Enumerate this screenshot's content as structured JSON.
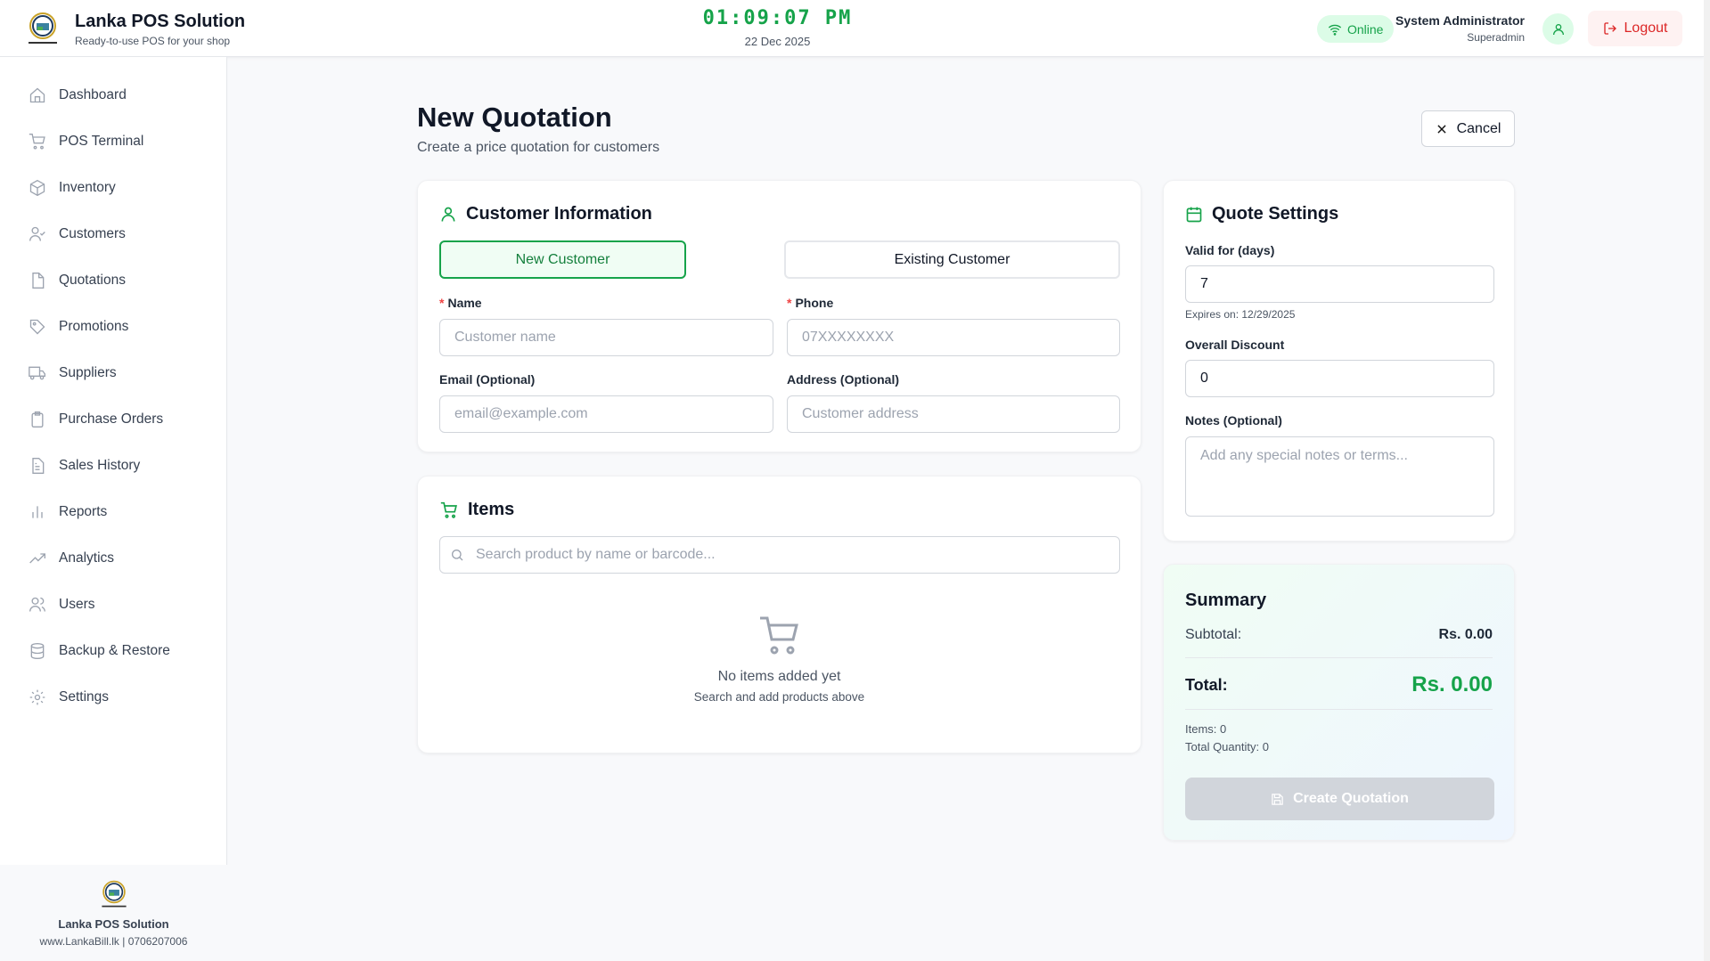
{
  "header": {
    "title": "Lanka POS Solution",
    "subtitle": "Ready-to-use POS for your shop",
    "time": "01:09:07 PM",
    "date": "22 Dec 2025",
    "status": "Online",
    "user_name": "System Administrator",
    "user_role": "Superadmin",
    "logout_label": "Logout"
  },
  "sidebar": {
    "items": [
      {
        "label": "Dashboard",
        "icon": "home-icon"
      },
      {
        "label": "POS Terminal",
        "icon": "cart-icon"
      },
      {
        "label": "Inventory",
        "icon": "box-icon"
      },
      {
        "label": "Customers",
        "icon": "user-check-icon"
      },
      {
        "label": "Quotations",
        "icon": "file-icon"
      },
      {
        "label": "Promotions",
        "icon": "tag-icon"
      },
      {
        "label": "Suppliers",
        "icon": "truck-icon"
      },
      {
        "label": "Purchase Orders",
        "icon": "clipboard-icon"
      },
      {
        "label": "Sales History",
        "icon": "file-text-icon"
      },
      {
        "label": "Reports",
        "icon": "bar-chart-icon"
      },
      {
        "label": "Analytics",
        "icon": "trending-up-icon"
      },
      {
        "label": "Users",
        "icon": "users-icon"
      },
      {
        "label": "Backup & Restore",
        "icon": "database-icon"
      },
      {
        "label": "Settings",
        "icon": "gear-icon"
      }
    ],
    "footer_name": "Lanka POS Solution",
    "footer_contact": "www.LankaBill.lk | 0706207006"
  },
  "page": {
    "title": "New Quotation",
    "subtitle": "Create a price quotation for customers",
    "cancel_label": "Cancel"
  },
  "customer": {
    "title": "Customer Information",
    "tab_new": "New Customer",
    "tab_existing": "Existing Customer",
    "active_tab": "New Customer",
    "name_label": "Name",
    "name_placeholder": "Customer name",
    "phone_label": "Phone",
    "phone_placeholder": "07XXXXXXXX",
    "email_label": "Email (Optional)",
    "email_placeholder": "email@example.com",
    "address_label": "Address (Optional)",
    "address_placeholder": "Customer address"
  },
  "items": {
    "title": "Items",
    "search_placeholder": "Search product by name or barcode...",
    "empty_title": "No items added yet",
    "empty_sub": "Search and add products above"
  },
  "settings": {
    "title": "Quote Settings",
    "valid_label": "Valid for (days)",
    "valid_value": "7",
    "expires": "Expires on: 12/29/2025",
    "discount_label": "Overall Discount",
    "discount_value": "0",
    "notes_label": "Notes (Optional)",
    "notes_placeholder": "Add any special notes or terms..."
  },
  "summary": {
    "title": "Summary",
    "subtotal_label": "Subtotal:",
    "subtotal": "Rs. 0.00",
    "total_label": "Total:",
    "total": "Rs. 0.00",
    "items": "Items: 0",
    "quantity": "Total Quantity: 0",
    "create_label": "Create Quotation"
  },
  "colors": {
    "accent": "#16a34a",
    "danger": "#dc2626",
    "disabled": "#d1d5db"
  }
}
